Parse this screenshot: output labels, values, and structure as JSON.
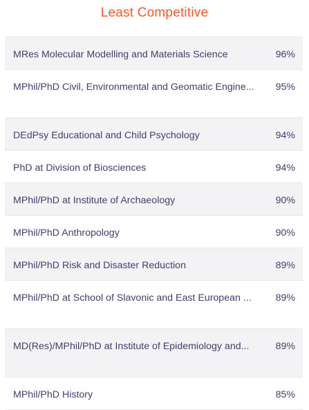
{
  "title": "Least Competitive",
  "rows": [
    {
      "name": "MRes Molecular Modelling and Materials Science",
      "value": "96%"
    },
    {
      "name": "MPhil/PhD Civil, Environmental and Geomatic Engine...",
      "value": "95%"
    },
    {
      "name": "DEdPsy Educational and Child Psychology",
      "value": "94%"
    },
    {
      "name": "PhD at Division of Biosciences",
      "value": "94%"
    },
    {
      "name": "MPhil/PhD at Institute of Archaeology",
      "value": "90%"
    },
    {
      "name": "MPhil/PhD Anthropology",
      "value": "90%"
    },
    {
      "name": "MPhil/PhD Risk and Disaster Reduction",
      "value": "89%"
    },
    {
      "name": "MPhil/PhD at School of Slavonic and East European ...",
      "value": "89%"
    },
    {
      "name": "MD(Res)/MPhil/PhD at Institute of Epidemiology and...",
      "value": "89%"
    },
    {
      "name": "MPhil/PhD History",
      "value": "85%"
    }
  ]
}
